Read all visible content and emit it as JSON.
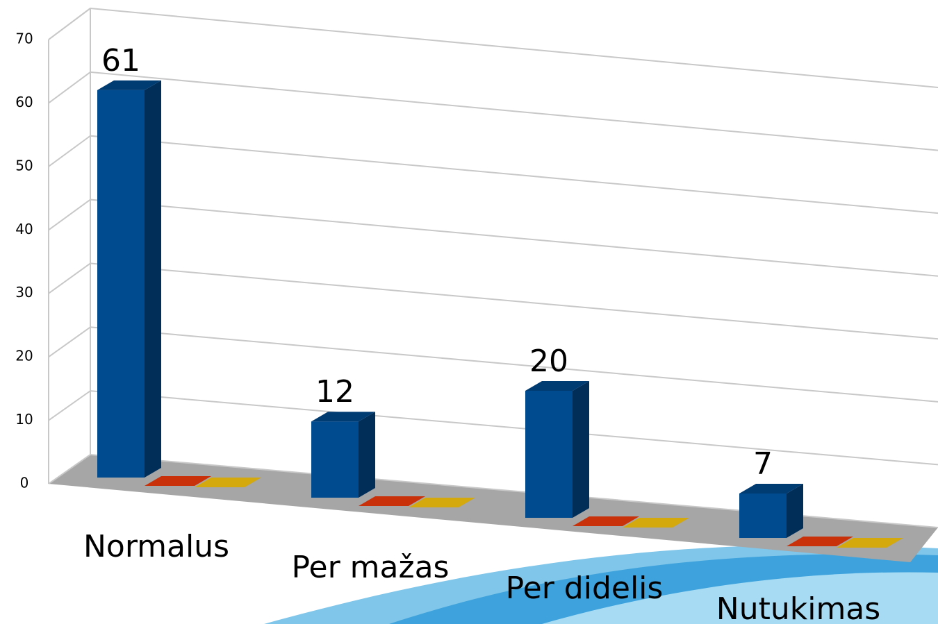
{
  "chart_data": {
    "type": "bar3d",
    "categories": [
      "Normalus",
      "Per mažas",
      "Per didelis",
      "Nutukimas"
    ],
    "series": [
      {
        "color": "#004a8f",
        "values": [
          61,
          12,
          20,
          7
        ],
        "show_values": true
      },
      {
        "color": "#c8310a",
        "values": [
          0,
          0,
          0,
          0
        ]
      },
      {
        "color": "#d4a90e",
        "values": [
          0,
          0,
          0,
          0
        ]
      }
    ],
    "ylim": [
      0,
      70
    ],
    "yticks": [
      0,
      10,
      20,
      30,
      40,
      50,
      60,
      70
    ],
    "grid": true
  }
}
